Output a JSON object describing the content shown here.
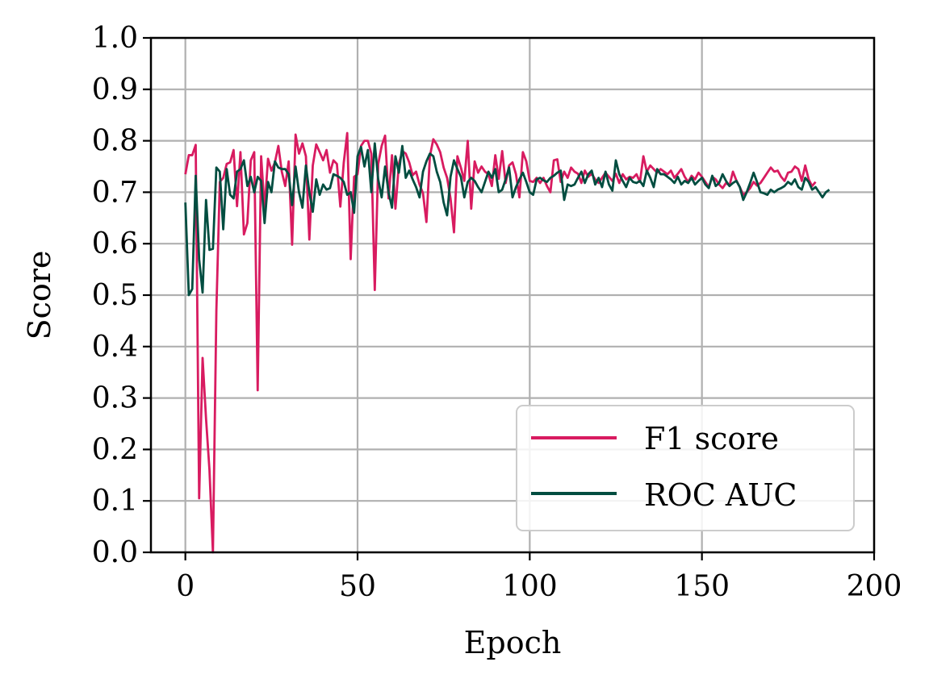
{
  "chart_data": {
    "type": "line",
    "title": "",
    "xlabel": "Epoch",
    "ylabel": "Score",
    "xlim": [
      -10,
      200
    ],
    "ylim": [
      0.0,
      1.0
    ],
    "xticks": [
      0,
      50,
      100,
      150,
      200
    ],
    "xtick_labels": [
      "0",
      "50",
      "100",
      "150",
      "200"
    ],
    "yticks": [
      0.0,
      0.1,
      0.2,
      0.3,
      0.4,
      0.5,
      0.6,
      0.7,
      0.8,
      0.9,
      1.0
    ],
    "ytick_labels": [
      "0.0",
      "0.1",
      "0.2",
      "0.3",
      "0.4",
      "0.5",
      "0.6",
      "0.7",
      "0.8",
      "0.9",
      "1.0"
    ],
    "grid": true,
    "legend_position": "lower-right",
    "series": [
      {
        "name": "F1 score",
        "color": "#d81b60",
        "values": [
          0.735,
          0.772,
          0.772,
          0.792,
          0.105,
          0.378,
          0.26,
          0.16,
          0.0,
          0.47,
          0.72,
          0.728,
          0.755,
          0.758,
          0.782,
          0.673,
          0.778,
          0.618,
          0.64,
          0.762,
          0.778,
          0.315,
          0.77,
          0.668,
          0.765,
          0.742,
          0.758,
          0.79,
          0.74,
          0.712,
          0.76,
          0.598,
          0.812,
          0.775,
          0.795,
          0.77,
          0.608,
          0.752,
          0.793,
          0.778,
          0.762,
          0.782,
          0.738,
          0.762,
          0.755,
          0.672,
          0.758,
          0.815,
          0.57,
          0.73,
          0.735,
          0.79,
          0.8,
          0.8,
          0.775,
          0.51,
          0.755,
          0.79,
          0.81,
          0.688,
          0.772,
          0.668,
          0.755,
          0.78,
          0.775,
          0.758,
          0.733,
          0.74,
          0.715,
          0.698,
          0.642,
          0.77,
          0.803,
          0.793,
          0.778,
          0.748,
          0.728,
          0.688,
          0.622,
          0.77,
          0.748,
          0.722,
          0.8,
          0.668,
          0.76,
          0.738,
          0.75,
          0.74,
          0.735,
          0.712,
          0.772,
          0.726,
          0.78,
          0.718,
          0.752,
          0.758,
          0.735,
          0.69,
          0.778,
          0.76,
          0.722,
          0.72,
          0.728,
          0.718,
          0.728,
          0.712,
          0.7,
          0.762,
          0.764,
          0.72,
          0.74,
          0.728,
          0.748,
          0.74,
          0.736,
          0.718,
          0.742,
          0.73,
          0.736,
          0.725,
          0.718,
          0.728,
          0.738,
          0.73,
          0.722,
          0.736,
          0.718,
          0.735,
          0.725,
          0.73,
          0.728,
          0.735,
          0.72,
          0.77,
          0.74,
          0.752,
          0.745,
          0.738,
          0.745,
          0.74,
          0.735,
          0.742,
          0.728,
          0.736,
          0.745,
          0.73,
          0.72,
          0.732,
          0.725,
          0.738,
          0.73,
          0.72,
          0.71,
          0.73,
          0.725,
          0.715,
          0.708,
          0.718,
          0.713,
          0.74,
          0.723,
          0.71,
          0.695,
          0.7,
          0.708,
          0.72,
          0.713,
          0.718,
          0.728,
          0.738,
          0.748,
          0.74,
          0.742,
          0.73,
          0.722,
          0.738,
          0.74,
          0.75,
          0.745,
          0.722,
          0.752,
          0.725,
          0.712,
          0.72
        ]
      },
      {
        "name": "ROC AUC",
        "color": "#004d40",
        "values": [
          0.68,
          0.5,
          0.512,
          0.732,
          0.57,
          0.505,
          0.685,
          0.588,
          0.59,
          0.748,
          0.74,
          0.628,
          0.745,
          0.695,
          0.688,
          0.74,
          0.745,
          0.762,
          0.712,
          0.73,
          0.7,
          0.73,
          0.722,
          0.64,
          0.72,
          0.7,
          0.76,
          0.748,
          0.745,
          0.745,
          0.735,
          0.675,
          0.75,
          0.7,
          0.67,
          0.752,
          0.7,
          0.662,
          0.725,
          0.695,
          0.715,
          0.705,
          0.708,
          0.735,
          0.732,
          0.728,
          0.72,
          0.695,
          0.7,
          0.66,
          0.77,
          0.788,
          0.75,
          0.782,
          0.7,
          0.795,
          0.725,
          0.69,
          0.75,
          0.7,
          0.67,
          0.77,
          0.738,
          0.79,
          0.728,
          0.742,
          0.725,
          0.71,
          0.69,
          0.74,
          0.76,
          0.775,
          0.77,
          0.74,
          0.72,
          0.68,
          0.655,
          0.73,
          0.762,
          0.745,
          0.73,
          0.69,
          0.72,
          0.728,
          0.722,
          0.71,
          0.7,
          0.72,
          0.74,
          0.728,
          0.745,
          0.7,
          0.705,
          0.725,
          0.748,
          0.69,
          0.71,
          0.725,
          0.738,
          0.72,
          0.7,
          0.695,
          0.725,
          0.728,
          0.723,
          0.72,
          0.728,
          0.732,
          0.738,
          0.742,
          0.685,
          0.715,
          0.712,
          0.715,
          0.728,
          0.74,
          0.718,
          0.735,
          0.742,
          0.715,
          0.728,
          0.71,
          0.74,
          0.715,
          0.703,
          0.762,
          0.735,
          0.722,
          0.71,
          0.728,
          0.72,
          0.718,
          0.722,
          0.712,
          0.742,
          0.728,
          0.71,
          0.745,
          0.735,
          0.735,
          0.73,
          0.725,
          0.718,
          0.73,
          0.715,
          0.722,
          0.718,
          0.728,
          0.715,
          0.722,
          0.728,
          0.715,
          0.708,
          0.732,
          0.712,
          0.718,
          0.735,
          0.722,
          0.712,
          0.718,
          0.722,
          0.71,
          0.685,
          0.7,
          0.718,
          0.738,
          0.72,
          0.7,
          0.698,
          0.695,
          0.705,
          0.7,
          0.705,
          0.708,
          0.712,
          0.72,
          0.715,
          0.725,
          0.71,
          0.705,
          0.728,
          0.72,
          0.705,
          0.71,
          0.7,
          0.69,
          0.7,
          0.705
        ]
      }
    ]
  }
}
